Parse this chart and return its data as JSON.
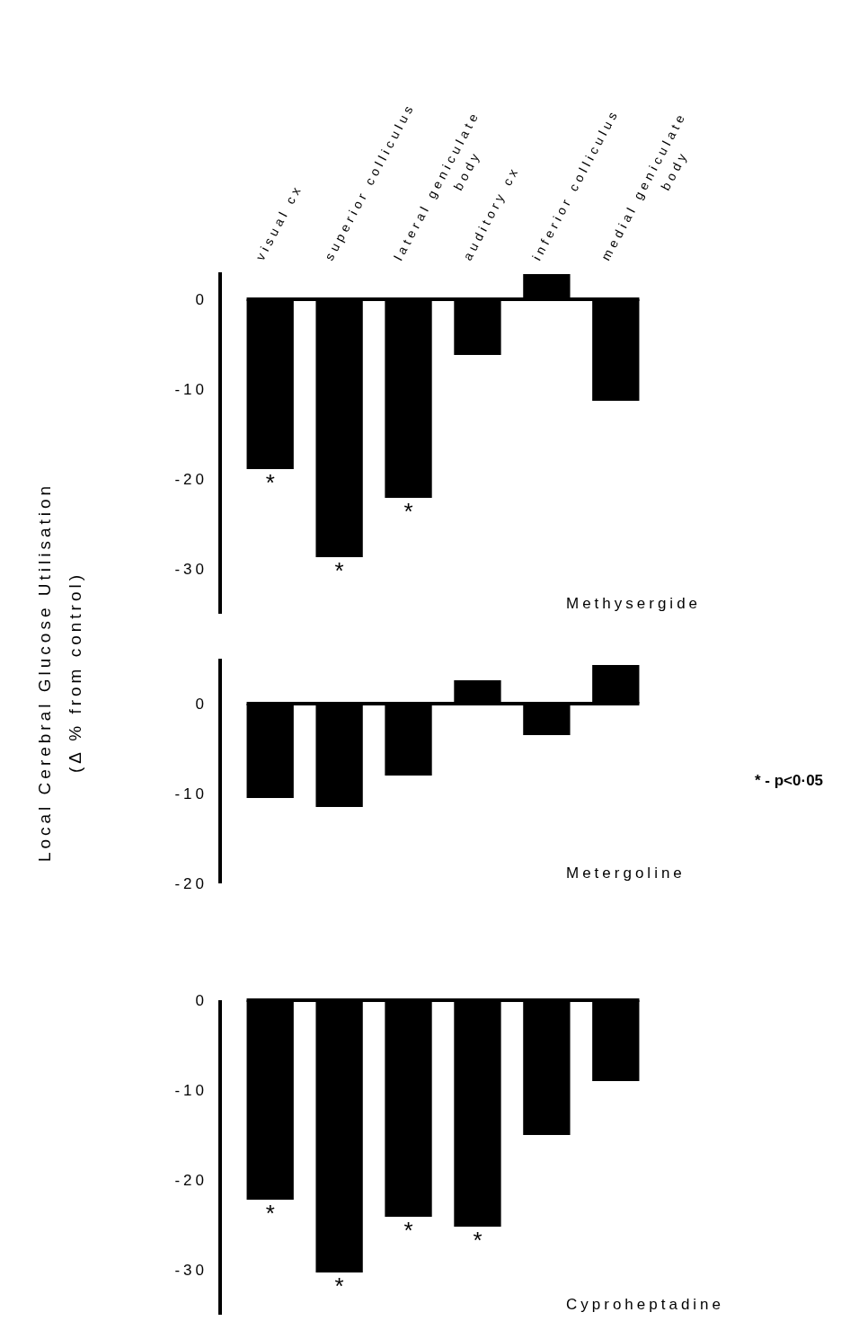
{
  "chart_data": [
    {
      "type": "bar",
      "title": "Methysergide",
      "categories": [
        "visual cx",
        "superior colliculus",
        "lateral geniculate body",
        "auditory cx",
        "inferior colliculus",
        "medial geniculate body"
      ],
      "values": [
        -18.9,
        -28.7,
        -22.1,
        -6.2,
        2.8,
        -11.3
      ],
      "color": "#000000",
      "ylim": [
        -35,
        3
      ],
      "yticks": [
        0,
        -10,
        -20,
        -30
      ],
      "annotations": [
        {
          "text": "*",
          "x": "visual cx",
          "y": -18.9
        },
        {
          "text": "*",
          "x": "superior colliculus",
          "y": -28.7
        },
        {
          "text": "*",
          "x": "lateral geniculate body",
          "y": -22.1
        }
      ]
    },
    {
      "type": "bar",
      "title": "Metergoline",
      "ylabel": "Local Cerebral Glucose Utilisation\n(Δ % from control)",
      "categories": [
        "visual cx",
        "superior colliculus",
        "lateral geniculate body",
        "auditory cx",
        "inferior colliculus",
        "medial geniculate body"
      ],
      "values": [
        -10.5,
        -11.5,
        -8,
        2.6,
        -3.5,
        4.3
      ],
      "color": "#000000",
      "ylim": [
        -20,
        5
      ],
      "yticks": [
        0,
        -10,
        -20
      ],
      "tick_labels": "y",
      "annotations": [
        "* - p<0·05"
      ]
    },
    {
      "type": "bar",
      "title": "Cyproheptadine",
      "categories": [
        "visual cx",
        "superior colliculus",
        "lateral geniculate body",
        "auditory cx",
        "inferior colliculus",
        "medial geniculate body"
      ],
      "values": [
        -22.2,
        -30.3,
        -24.1,
        -25.2,
        -15,
        -9
      ],
      "color": "#000000",
      "ylim": [
        -35,
        0
      ],
      "yticks": [
        0,
        -10,
        -20,
        -30
      ],
      "tick_labels": "y",
      "annotations": [
        {
          "text": "*",
          "x": "visual cx",
          "y": -22.2
        },
        {
          "text": "*",
          "x": "superior colliculus",
          "y": -30.3
        },
        {
          "text": "*",
          "x": "lateral geniculate body",
          "y": -24.1
        },
        {
          "text": "*",
          "x": "auditory cx",
          "y": -25.2
        }
      ]
    }
  ]
}
